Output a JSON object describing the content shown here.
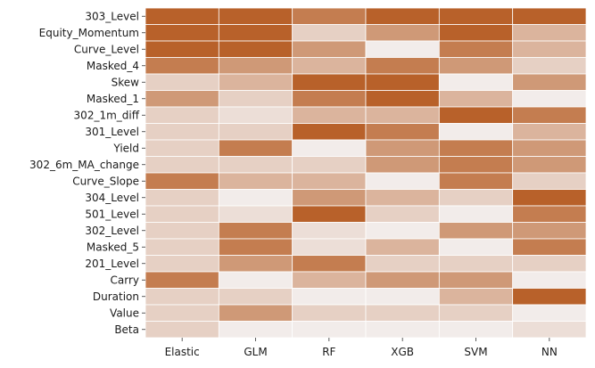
{
  "chart_data": {
    "type": "heatmap",
    "title": "",
    "xlabel": "",
    "ylabel": "",
    "columns": [
      "Elastic",
      "GLM",
      "RF",
      "XGB",
      "SVM",
      "NN"
    ],
    "rows": [
      "303_Level",
      "Equity_Momentum",
      "Curve_Level",
      "Masked_4",
      "Skew",
      "Masked_1",
      "302_1m_diff",
      "301_Level",
      "Yield",
      "302_6m_MA_change",
      "Curve_Slope",
      "304_Level",
      "501_Level",
      "302_Level",
      "Masked_5",
      "201_Level",
      "Carry",
      "Duration",
      "Value",
      "Beta"
    ],
    "values": [
      [
        5,
        5,
        4,
        5,
        5,
        5
      ],
      [
        5,
        5,
        1,
        3,
        5,
        2
      ],
      [
        5,
        5,
        3,
        0,
        4,
        2
      ],
      [
        4,
        3,
        2,
        4,
        3,
        1
      ],
      [
        1,
        2,
        5,
        5,
        0,
        3
      ],
      [
        3,
        1,
        4,
        5,
        2,
        0
      ],
      [
        1,
        0.5,
        2,
        2,
        5,
        4
      ],
      [
        1,
        1,
        5,
        4,
        0,
        2
      ],
      [
        1,
        4,
        0,
        3,
        4,
        3
      ],
      [
        1,
        1,
        1,
        3,
        4,
        3
      ],
      [
        4,
        2,
        2,
        0,
        4,
        1
      ],
      [
        1,
        0,
        3,
        2,
        1,
        5
      ],
      [
        1,
        0.5,
        5,
        1,
        0,
        4
      ],
      [
        1,
        4,
        0.5,
        0,
        3,
        3
      ],
      [
        1,
        4,
        0.5,
        2,
        0,
        4
      ],
      [
        1,
        3,
        4,
        1,
        1,
        1
      ],
      [
        4,
        0,
        2,
        3,
        3,
        0
      ],
      [
        1,
        1,
        0,
        0,
        2,
        5
      ],
      [
        1,
        3,
        1,
        1,
        1,
        0
      ],
      [
        1,
        0,
        0,
        0,
        0,
        0.5
      ]
    ],
    "vmin": 0,
    "vmax": 5,
    "color_low": "#f2ecea",
    "color_high": "#b8612a",
    "colorbar": false,
    "grid_line_color": "#ffffff"
  }
}
